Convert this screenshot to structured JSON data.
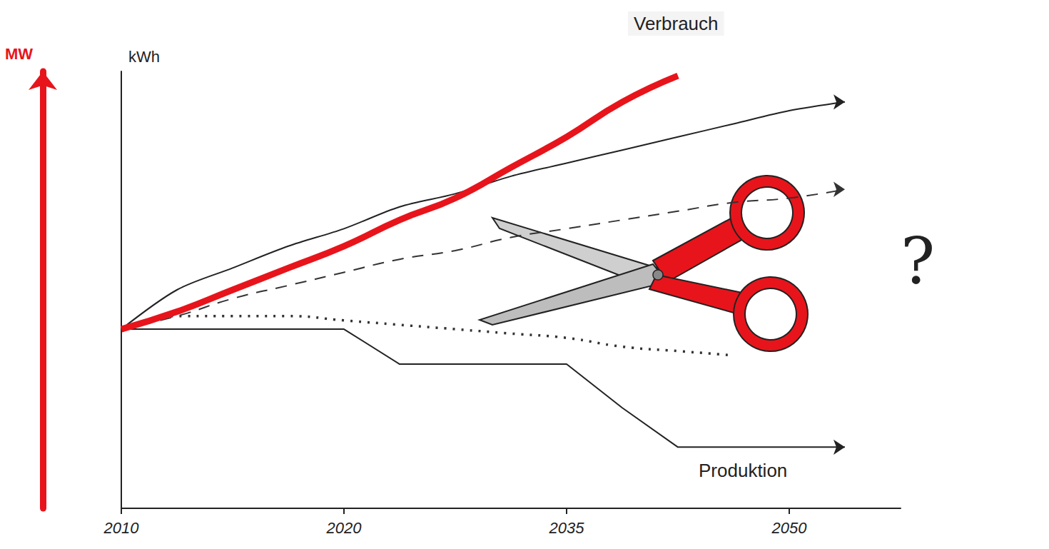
{
  "chart_data": {
    "type": "line",
    "ylabel": "kWh",
    "y2label": "MW",
    "categories": [
      "2010",
      null,
      null,
      null,
      "2020",
      null,
      null,
      null,
      "2035",
      null,
      null,
      null,
      "2050",
      null,
      null
    ],
    "ylim": [
      0,
      100
    ],
    "y2lim": [
      0,
      100
    ],
    "tick_labels": "x",
    "grid": false,
    "annotations": [
      "?"
    ],
    "series": [
      {
        "name": "Verbrauch",
        "color": "#222222",
        "line_style": "solid",
        "values": [
          41,
          50,
          55,
          60,
          64,
          69,
          72,
          76,
          79,
          82,
          85,
          88,
          91,
          93,
          null
        ]
      },
      {
        "color": "#333333",
        "line_style": "dashed",
        "values": [
          41,
          44,
          48,
          51,
          54,
          57,
          59,
          62,
          64,
          66,
          68,
          70,
          71,
          73,
          null
        ]
      },
      {
        "color": "#333333",
        "line_style": "dotted",
        "values": [
          41,
          44,
          44,
          44,
          43,
          42,
          41,
          40,
          39,
          37,
          36,
          35,
          null,
          null,
          null
        ]
      },
      {
        "name": "Produktion",
        "color": "#222222",
        "line_style": "solid",
        "values": [
          41,
          41,
          41,
          41,
          41,
          33,
          33,
          33,
          33,
          23,
          14,
          14,
          14,
          14,
          null
        ]
      },
      {
        "color": "#e8141b",
        "line_style": "solid",
        "axis": "y2",
        "values": [
          41,
          45,
          50,
          55,
          60,
          66,
          71,
          78,
          85,
          93,
          99,
          null,
          null,
          null,
          null
        ]
      }
    ]
  }
}
